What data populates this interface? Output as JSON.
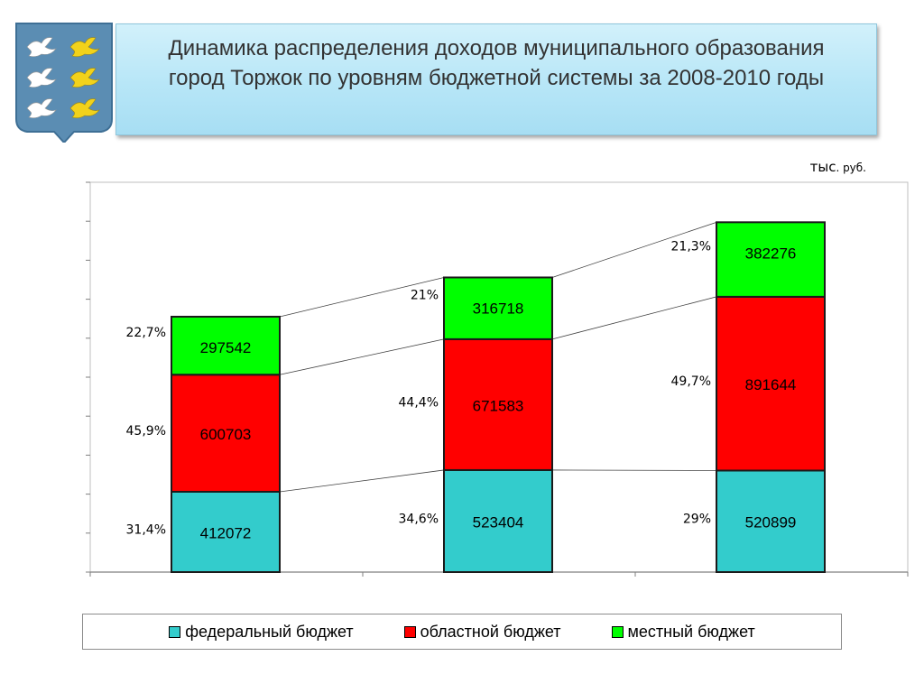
{
  "title": {
    "text": "Динамика распределения доходов муниципального образования\nгород Торжок по уровням бюджетной системы за 2008-2010 годы"
  },
  "units": {
    "main": "тыс",
    "suffix": ". руб."
  },
  "icons": {
    "coat_of_arms": "coat-of-arms-with-six-doves-icon"
  },
  "chart_data": {
    "type": "bar",
    "stacked": true,
    "title": "Динамика распределения доходов муниципального образования город Торжок по уровням бюджетной системы за 2008-2010 годы",
    "units": "тыс. руб.",
    "categories": [
      "",
      "",
      ""
    ],
    "series": [
      {
        "name": "федеральный бюджет",
        "color": "#33cccc",
        "values": [
          412072,
          523404,
          520899
        ],
        "percent_labels": [
          "31,4%",
          "34,6%",
          "29%"
        ]
      },
      {
        "name": "областной бюджет",
        "color": "#ff0000",
        "values": [
          600703,
          671583,
          891644
        ],
        "percent_labels": [
          "45,9%",
          "44,4%",
          "49,7%"
        ]
      },
      {
        "name": "местный бюджет",
        "color": "#00ff00",
        "values": [
          297542,
          316718,
          382276
        ],
        "percent_labels": [
          "22,7%",
          "21%",
          "21,3%"
        ]
      }
    ],
    "ylim": [
      0,
      2000000
    ],
    "grid": false,
    "series_lines": true,
    "legend_position": "bottom"
  },
  "legend": {
    "items": [
      {
        "label": "федеральный бюджет",
        "color": "#33cccc"
      },
      {
        "label": "областной бюджет",
        "color": "#ff0000"
      },
      {
        "label": "местный бюджет",
        "color": "#00ff00"
      }
    ]
  }
}
